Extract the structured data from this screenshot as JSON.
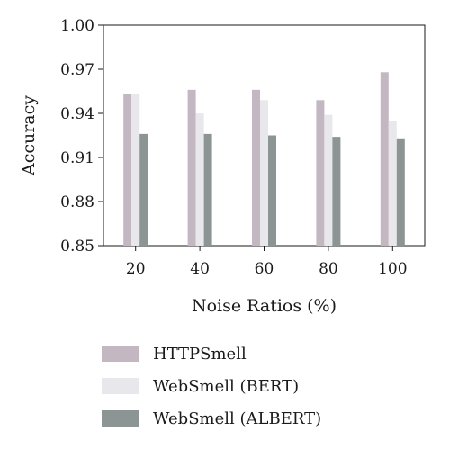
{
  "chart_data": {
    "type": "bar",
    "categories": [
      "20",
      "40",
      "60",
      "80",
      "100"
    ],
    "series": [
      {
        "name": "HTTPSmell",
        "color": "#c3b8c1",
        "values": [
          0.953,
          0.956,
          0.956,
          0.949,
          0.968
        ]
      },
      {
        "name": "WebSmell (BERT)",
        "color": "#e8e8ec",
        "values": [
          0.953,
          0.94,
          0.949,
          0.939,
          0.935
        ]
      },
      {
        "name": "WebSmell (ALBERT)",
        "color": "#8c9593",
        "values": [
          0.926,
          0.926,
          0.925,
          0.924,
          0.923
        ]
      }
    ],
    "xlabel": "Noise Ratios (%)",
    "ylabel": "Accuracy",
    "ylim": [
      0.85,
      1.0
    ],
    "yticks": [
      "0.85",
      "0.88",
      "0.91",
      "0.94",
      "0.97",
      "1.00"
    ],
    "ytick_values": [
      0.85,
      0.88,
      0.91,
      0.94,
      0.97,
      1.0
    ],
    "grid": false,
    "legend_position": "bottom"
  }
}
